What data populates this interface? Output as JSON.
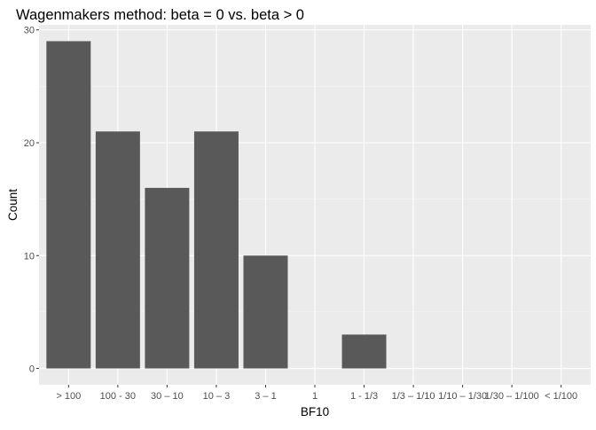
{
  "chart_data": {
    "type": "bar",
    "title": "Wagenmakers method: beta = 0 vs. beta > 0",
    "xlabel": "BF10",
    "ylabel": "Count",
    "categories": [
      "> 100",
      "100 - 30",
      "30 – 10",
      "10 – 3",
      "3 – 1",
      "1",
      "1 - 1/3",
      "1/3 – 1/10",
      "1/10 – 1/30",
      "1/30 – 1/100",
      "< 1/100"
    ],
    "values": [
      29,
      21,
      16,
      21,
      10,
      0,
      3,
      0,
      0,
      0,
      0
    ],
    "ylim": [
      -1.45,
      30.45
    ],
    "yticks": [
      0,
      10,
      20,
      30
    ],
    "grid": true,
    "legend": "none",
    "colors": {
      "bar": "#595959",
      "panel": "#ebebeb",
      "grid_major": "#ffffff",
      "tick_mark": "#333333"
    }
  }
}
